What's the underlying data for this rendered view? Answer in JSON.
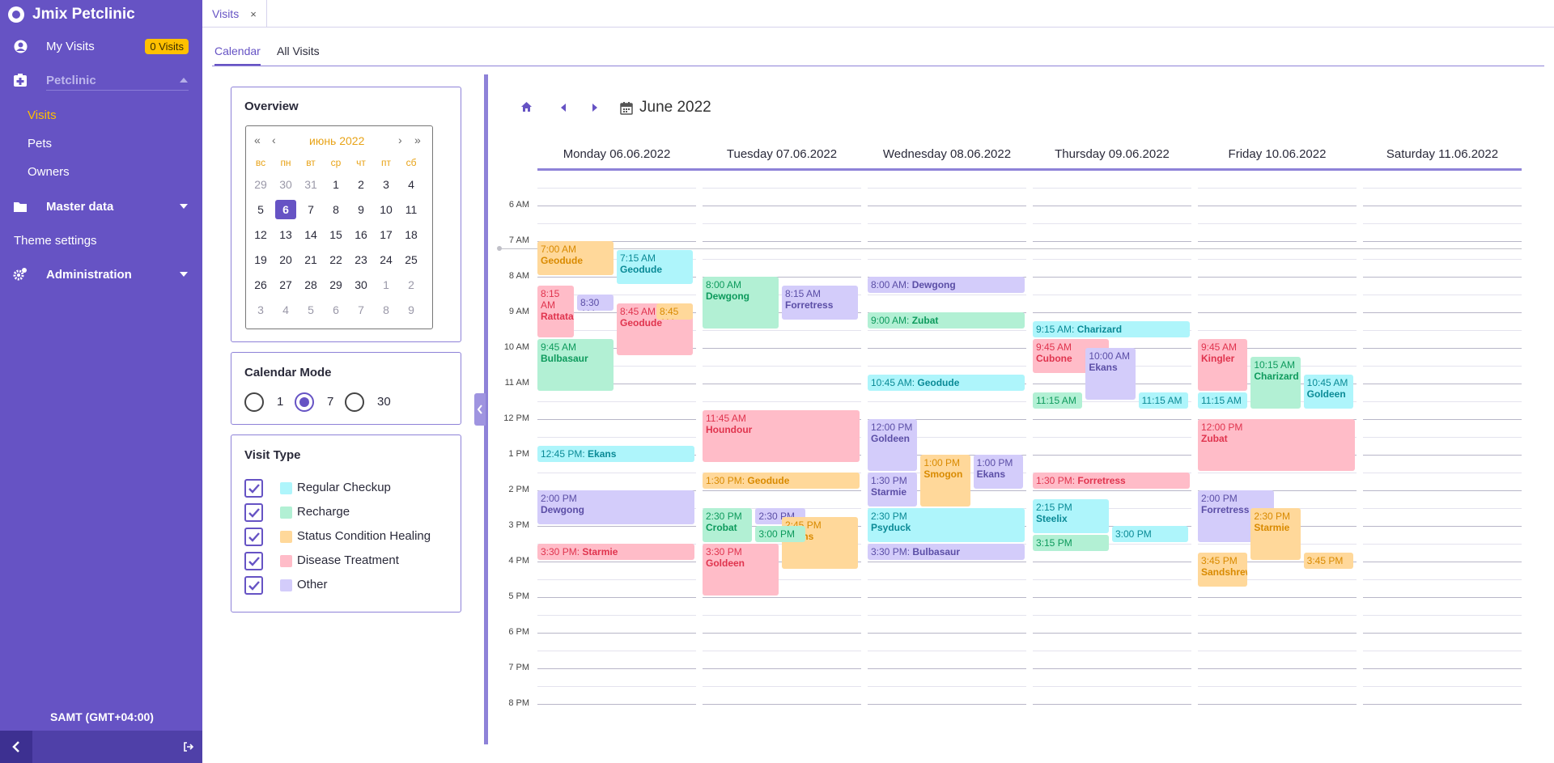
{
  "app": {
    "title": "Jmix Petclinic",
    "timezone": "SAMT (GMT+04:00)"
  },
  "sidebar": {
    "my_visits": "My Visits",
    "my_visits_badge": "0 Visits",
    "petclinic": "Petclinic",
    "visits": "Visits",
    "pets": "Pets",
    "owners": "Owners",
    "master_data": "Master data",
    "theme_settings": "Theme settings",
    "administration": "Administration"
  },
  "tabs": {
    "open_tab": "Visits",
    "close": "×",
    "calendar": "Calendar",
    "all_visits": "All Visits"
  },
  "overview": {
    "title": "Overview",
    "month_label": "июнь 2022",
    "nav": {
      "first": "«",
      "prev": "‹",
      "next": "›",
      "last": "»"
    },
    "weekdays": [
      "вс",
      "пн",
      "вт",
      "ср",
      "чт",
      "пт",
      "сб"
    ],
    "weeks": [
      [
        "29",
        "30",
        "31",
        "1",
        "2",
        "3",
        "4"
      ],
      [
        "5",
        "6",
        "7",
        "8",
        "9",
        "10",
        "11"
      ],
      [
        "12",
        "13",
        "14",
        "15",
        "16",
        "17",
        "18"
      ],
      [
        "19",
        "20",
        "21",
        "22",
        "23",
        "24",
        "25"
      ],
      [
        "26",
        "27",
        "28",
        "29",
        "30",
        "1",
        "2"
      ],
      [
        "3",
        "4",
        "5",
        "6",
        "7",
        "8",
        "9"
      ]
    ],
    "selected_day": "6"
  },
  "calendar_mode": {
    "title": "Calendar Mode",
    "options": [
      "1",
      "7",
      "30"
    ],
    "selected": "7"
  },
  "visit_type": {
    "title": "Visit Type",
    "types": [
      {
        "label": "Regular Checkup",
        "color": "#aef5fb",
        "checked": true
      },
      {
        "label": "Recharge",
        "color": "#b2f0d4",
        "checked": true
      },
      {
        "label": "Status Condition Healing",
        "color": "#ffd89a",
        "checked": true
      },
      {
        "label": "Disease Treatment",
        "color": "#ffbcc8",
        "checked": true
      },
      {
        "label": "Other",
        "color": "#d3ccfa",
        "checked": true
      }
    ]
  },
  "calendar": {
    "title": "June 2022",
    "days": [
      "Monday 06.06.2022",
      "Tuesday 07.06.2022",
      "Wednesday 08.06.2022",
      "Thursday 09.06.2022",
      "Friday 10.06.2022",
      "Saturday 11.06.2022"
    ],
    "hours": [
      "6 AM",
      "7 AM",
      "8 AM",
      "9 AM",
      "10 AM",
      "11 AM",
      "12 PM",
      "1 PM",
      "2 PM",
      "3 PM",
      "4 PM",
      "5 PM",
      "6 PM",
      "7 PM",
      "8 PM"
    ],
    "events": [
      {
        "day": 0,
        "start": "7:00",
        "end": "8:00",
        "col": 0,
        "cols": 2,
        "time": "7:00 AM",
        "pet": "Geodude",
        "type": "sc"
      },
      {
        "day": 0,
        "start": "7:15",
        "end": "8:15",
        "col": 1,
        "cols": 2,
        "time": "7:15 AM",
        "pet": "Geodude",
        "type": "rc"
      },
      {
        "day": 0,
        "start": "8:15",
        "end": "9:45",
        "col": 0,
        "cols": 4,
        "time": "8:15 AM",
        "pet": "Rattata",
        "type": "dt"
      },
      {
        "day": 0,
        "start": "8:30",
        "end": "9:00",
        "col": 1,
        "cols": 4,
        "time": "8:30 AM",
        "pet": "",
        "type": "ot"
      },
      {
        "day": 0,
        "start": "8:45",
        "end": "10:15",
        "col": 1,
        "cols": 2,
        "time": "8:45 AM",
        "pet": "Geodude",
        "type": "dt"
      },
      {
        "day": 0,
        "start": "8:45",
        "end": "9:15",
        "col": 3,
        "cols": 4,
        "time": "8:45 AM",
        "pet": "",
        "type": "sc"
      },
      {
        "day": 0,
        "start": "9:45",
        "end": "11:15",
        "col": 0,
        "cols": 2,
        "time": "9:45 AM",
        "pet": "Bulbasaur",
        "type": "re"
      },
      {
        "day": 0,
        "start": "12:45",
        "end": "13:15",
        "col": 0,
        "cols": 1,
        "time": "12:45 PM",
        "pet": "Ekans",
        "type": "rc",
        "inline": true
      },
      {
        "day": 0,
        "start": "14:00",
        "end": "15:00",
        "col": 0,
        "cols": 1,
        "time": "2:00 PM",
        "pet": "Dewgong",
        "type": "ot"
      },
      {
        "day": 0,
        "start": "15:30",
        "end": "16:00",
        "col": 0,
        "cols": 1,
        "time": "3:30 PM",
        "pet": "Starmie",
        "type": "dt",
        "inline": true
      },
      {
        "day": 1,
        "start": "8:00",
        "end": "9:30",
        "col": 0,
        "cols": 2,
        "time": "8:00 AM",
        "pet": "Dewgong",
        "type": "re"
      },
      {
        "day": 1,
        "start": "8:15",
        "end": "9:15",
        "col": 1,
        "cols": 2,
        "time": "8:15 AM",
        "pet": "Forretress",
        "type": "ot"
      },
      {
        "day": 1,
        "start": "11:45",
        "end": "13:15",
        "col": 0,
        "cols": 1,
        "time": "11:45 AM",
        "pet": "Houndour",
        "type": "dt"
      },
      {
        "day": 1,
        "start": "13:30",
        "end": "14:00",
        "col": 0,
        "cols": 1,
        "time": "1:30 PM",
        "pet": "Geodude",
        "type": "sc",
        "inline": true
      },
      {
        "day": 1,
        "start": "14:30",
        "end": "15:30",
        "col": 0,
        "cols": 3,
        "time": "2:30 PM",
        "pet": "Crobat",
        "type": "re"
      },
      {
        "day": 1,
        "start": "14:30",
        "end": "15:00",
        "col": 1,
        "cols": 3,
        "time": "2:30 PM",
        "pet": "",
        "type": "ot"
      },
      {
        "day": 1,
        "start": "14:45",
        "end": "16:15",
        "col": 1,
        "cols": 2,
        "time": "2:45 PM",
        "pet": "Ekans",
        "type": "sc"
      },
      {
        "day": 1,
        "start": "15:00",
        "end": "15:30",
        "col": 1,
        "cols": 3,
        "time": "3:00 PM",
        "pet": "",
        "type": "re"
      },
      {
        "day": 1,
        "start": "15:30",
        "end": "17:00",
        "col": 0,
        "cols": 2,
        "time": "3:30 PM",
        "pet": "Goldeen",
        "type": "dt"
      },
      {
        "day": 2,
        "start": "8:00",
        "end": "8:30",
        "col": 0,
        "cols": 1,
        "time": "8:00 AM",
        "pet": "Dewgong",
        "type": "ot",
        "inline": true
      },
      {
        "day": 2,
        "start": "9:00",
        "end": "9:30",
        "col": 0,
        "cols": 1,
        "time": "9:00 AM",
        "pet": "Zubat",
        "type": "re",
        "inline": true
      },
      {
        "day": 2,
        "start": "10:45",
        "end": "11:15",
        "col": 0,
        "cols": 1,
        "time": "10:45 AM",
        "pet": "Geodude",
        "type": "rc",
        "inline": true
      },
      {
        "day": 2,
        "start": "12:00",
        "end": "13:30",
        "col": 0,
        "cols": 3,
        "time": "12:00 PM",
        "pet": "Goldeen",
        "type": "ot"
      },
      {
        "day": 2,
        "start": "13:00",
        "end": "14:30",
        "col": 1,
        "cols": 3,
        "time": "1:00 PM",
        "pet": "Smogon",
        "type": "sc"
      },
      {
        "day": 2,
        "start": "13:00",
        "end": "14:00",
        "col": 2,
        "cols": 3,
        "time": "1:00 PM",
        "pet": "Ekans",
        "type": "ot"
      },
      {
        "day": 2,
        "start": "13:30",
        "end": "14:30",
        "col": 0,
        "cols": 3,
        "time": "1:30 PM",
        "pet": "Starmie",
        "type": "ot"
      },
      {
        "day": 2,
        "start": "14:30",
        "end": "15:30",
        "col": 0,
        "cols": 1,
        "time": "2:30 PM",
        "pet": "Psyduck",
        "type": "rc"
      },
      {
        "day": 2,
        "start": "15:30",
        "end": "16:00",
        "col": 0,
        "cols": 1,
        "time": "3:30 PM",
        "pet": "Bulbasaur",
        "type": "ot",
        "inline": true
      },
      {
        "day": 3,
        "start": "9:15",
        "end": "9:45",
        "col": 0,
        "cols": 1,
        "time": "9:15 AM",
        "pet": "Charizard",
        "type": "rc",
        "inline": true
      },
      {
        "day": 3,
        "start": "9:45",
        "end": "10:45",
        "col": 0,
        "cols": 2,
        "time": "9:45 AM",
        "pet": "Cubone",
        "type": "dt"
      },
      {
        "day": 3,
        "start": "10:00",
        "end": "11:30",
        "col": 1,
        "cols": 3,
        "time": "10:00 AM",
        "pet": "Ekans",
        "type": "ot"
      },
      {
        "day": 3,
        "start": "11:15",
        "end": "11:45",
        "col": 0,
        "cols": 3,
        "time": "11:15 AM",
        "pet": "",
        "type": "re"
      },
      {
        "day": 3,
        "start": "11:15",
        "end": "11:45",
        "col": 2,
        "cols": 3,
        "time": "11:15 AM",
        "pet": "",
        "type": "rc"
      },
      {
        "day": 3,
        "start": "13:30",
        "end": "14:00",
        "col": 0,
        "cols": 1,
        "time": "1:30 PM",
        "pet": "Forretress",
        "type": "dt",
        "inline": true
      },
      {
        "day": 3,
        "start": "14:15",
        "end": "15:15",
        "col": 0,
        "cols": 2,
        "time": "2:15 PM",
        "pet": "Steelix",
        "type": "rc"
      },
      {
        "day": 3,
        "start": "15:00",
        "end": "15:30",
        "col": 1,
        "cols": 2,
        "time": "3:00 PM",
        "pet": "",
        "type": "rc"
      },
      {
        "day": 3,
        "start": "15:15",
        "end": "15:45",
        "col": 0,
        "cols": 2,
        "time": "3:15 PM",
        "pet": "",
        "type": "re"
      },
      {
        "day": 4,
        "start": "9:45",
        "end": "11:15",
        "col": 0,
        "cols": 3,
        "time": "9:45 AM",
        "pet": "Kingler",
        "type": "dt"
      },
      {
        "day": 4,
        "start": "10:15",
        "end": "11:45",
        "col": 1,
        "cols": 3,
        "time": "10:15 AM",
        "pet": "Charizard",
        "type": "re"
      },
      {
        "day": 4,
        "start": "10:45",
        "end": "11:45",
        "col": 2,
        "cols": 3,
        "time": "10:45 AM",
        "pet": "Goldeen",
        "type": "rc"
      },
      {
        "day": 4,
        "start": "11:15",
        "end": "11:45",
        "col": 0,
        "cols": 3,
        "time": "11:15 AM",
        "pet": "",
        "type": "rc"
      },
      {
        "day": 4,
        "start": "12:00",
        "end": "13:30",
        "col": 0,
        "cols": 1,
        "time": "12:00 PM",
        "pet": "Zubat",
        "type": "dt"
      },
      {
        "day": 4,
        "start": "14:00",
        "end": "15:30",
        "col": 0,
        "cols": 2,
        "time": "2:00 PM",
        "pet": "Forretress",
        "type": "ot"
      },
      {
        "day": 4,
        "start": "14:30",
        "end": "16:00",
        "col": 1,
        "cols": 3,
        "time": "2:30 PM",
        "pet": "Starmie",
        "type": "sc"
      },
      {
        "day": 4,
        "start": "15:45",
        "end": "16:45",
        "col": 0,
        "cols": 3,
        "time": "3:45 PM",
        "pet": "Sandshrew",
        "type": "sc"
      },
      {
        "day": 4,
        "start": "15:45",
        "end": "16:15",
        "col": 2,
        "cols": 3,
        "time": "3:45 PM",
        "pet": "",
        "type": "sc"
      }
    ]
  }
}
